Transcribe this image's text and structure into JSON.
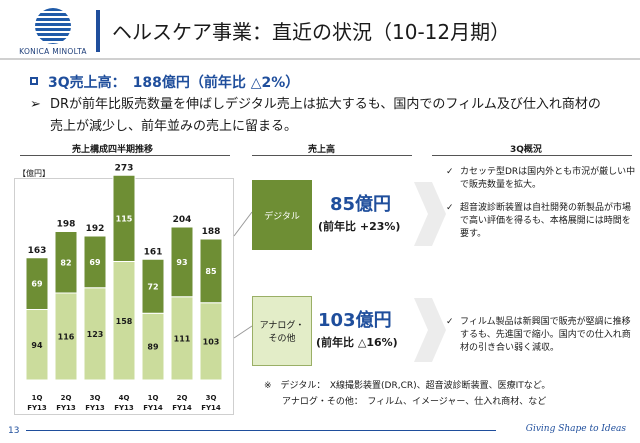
{
  "header": {
    "logo_text": "KONICA MINOLTA",
    "title": "ヘルスケア事業：直近の状況（10-12月期）"
  },
  "bullets": {
    "headline": "3Q売上高：　188億円（前年比 △2%）",
    "detail_line1": "DRが前年比販売数量を伸ばしデジタル売上は拡大するも、国内でのフィルム及び仕入れ商材の",
    "detail_line2": "売上が減少し、前年並みの売上に留まる。",
    "arrow": "➢"
  },
  "sections": {
    "chart_header": "売上構成四半期推移",
    "sales_header": "売上高",
    "overview_header": "3Q概況"
  },
  "unit_label": "【億円】",
  "chart_data": {
    "type": "bar",
    "categories": [
      "1Q FY13",
      "2Q FY13",
      "3Q FY13",
      "4Q FY13",
      "1Q FY14",
      "2Q FY14",
      "3Q FY14"
    ],
    "category_lines": [
      [
        "1Q",
        "FY13"
      ],
      [
        "2Q",
        "FY13"
      ],
      [
        "3Q",
        "FY13"
      ],
      [
        "4Q",
        "FY13"
      ],
      [
        "1Q",
        "FY14"
      ],
      [
        "2Q",
        "FY14"
      ],
      [
        "3Q",
        "FY14"
      ]
    ],
    "series": [
      {
        "name": "アナログ・その他",
        "values": [
          94,
          116,
          123,
          158,
          89,
          111,
          103
        ],
        "color": "#cbdc9c"
      },
      {
        "name": "デジタル",
        "values": [
          69,
          82,
          69,
          115,
          72,
          93,
          85
        ],
        "color": "#6e8e34"
      }
    ],
    "totals": [
      163,
      198,
      192,
      273,
      161,
      204,
      188
    ],
    "stacked": true,
    "ylim": [
      0,
      280
    ],
    "grid": false,
    "legend": "none"
  },
  "segments": {
    "digital": {
      "label": "デジタル",
      "value": "85億円",
      "yoy": "(前年比 +23%)",
      "notes": [
        "カセッテ型DRは国内外とも市況が厳しい中で販売数量を拡大。",
        "超音波診断装置は自社開発の新製品が市場で高い評価を得るも、本格展開には時間を要す。"
      ]
    },
    "analog": {
      "label_line1": "アナログ・",
      "label_line2": "その他",
      "value": "103億円",
      "yoy": "(前年比 △16%)",
      "notes": [
        "フィルム製品は新興国で販売が堅調に推移するも、先進国で縮小。国内での仕入れ商材の引き合い弱く減収。"
      ]
    },
    "check": "✓"
  },
  "footnote": {
    "line1": "※　デジタル：　X線撮影装置(DR,CR)、超音波診断装置、医療ITなど。",
    "line2": "　　アナログ・その他：　フィルム、イメージャー、仕入れ商材、など"
  },
  "footer": {
    "page_number": "13",
    "tagline": "Giving Shape to Ideas"
  }
}
